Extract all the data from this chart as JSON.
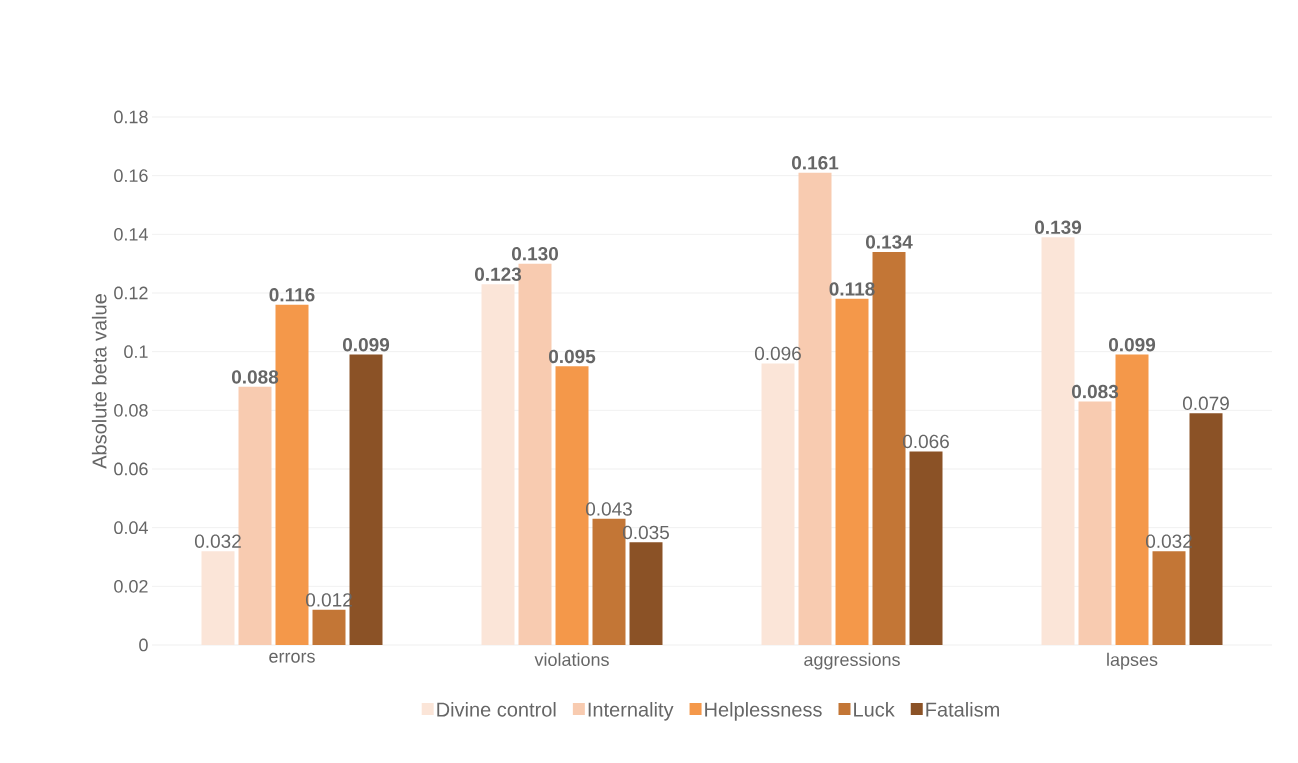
{
  "chart_data": {
    "type": "bar",
    "ylabel": "Absolute beta value",
    "categories": [
      "errors",
      "violations",
      "aggressions",
      "lapses"
    ],
    "series": [
      {
        "name": "Divine control",
        "color": "#fbe5d8",
        "values": [
          0.032,
          0.123,
          0.096,
          0.139
        ],
        "value_labels": [
          "0.032",
          "**0.123**",
          "0.096",
          "**0.139**"
        ]
      },
      {
        "name": "Internality",
        "color": "#f8cbb0",
        "values": [
          0.088,
          0.13,
          0.161,
          0.083
        ],
        "value_labels": [
          "**0.088**",
          "**0.130**",
          "**0.161**",
          "**0.083**"
        ]
      },
      {
        "name": "Helplessness",
        "color": "#f4984a",
        "values": [
          0.116,
          0.095,
          0.118,
          0.099
        ],
        "value_labels": [
          "**0.116**",
          "**0.095**",
          "**0.118**",
          "**0.099**"
        ]
      },
      {
        "name": "Luck",
        "color": "#c37636",
        "values": [
          0.012,
          0.043,
          0.134,
          0.032
        ],
        "value_labels": [
          "0.012",
          "0.043",
          "**0.134**",
          "0.032"
        ]
      },
      {
        "name": "Fatalism",
        "color": "#8b5226",
        "values": [
          0.099,
          0.035,
          0.066,
          0.079
        ],
        "value_labels": [
          "**0.099**",
          "0.035",
          "0.066",
          "0.079"
        ]
      }
    ],
    "ylim": [
      0,
      0.18
    ],
    "yticks": [
      0,
      0.02,
      0.04,
      0.06,
      0.08,
      0.1,
      0.12,
      0.14,
      0.16,
      0.18
    ],
    "grid": "y",
    "legend": "bottom"
  }
}
